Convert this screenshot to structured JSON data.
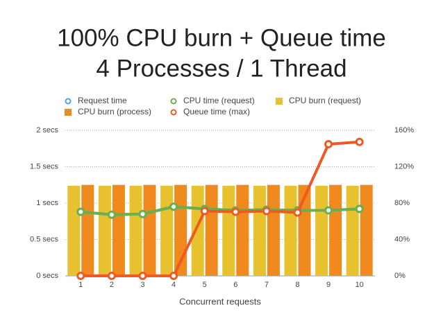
{
  "chart_data": {
    "type": "combo",
    "title": "100% CPU burn + Queue time",
    "subtitle": "4 Processes / 1 Thread",
    "xlabel": "Concurrent requests",
    "categories": [
      "1",
      "2",
      "3",
      "4",
      "5",
      "6",
      "7",
      "8",
      "9",
      "10"
    ],
    "ylim": [
      0,
      2
    ],
    "yticks": [
      {
        "value": 0,
        "label": "0 secs"
      },
      {
        "value": 0.5,
        "label": "0.5 secs"
      },
      {
        "value": 1,
        "label": "1 secs"
      },
      {
        "value": 1.5,
        "label": "1.5 secs"
      },
      {
        "value": 2,
        "label": "2 secs"
      }
    ],
    "y2lim": [
      0,
      160
    ],
    "y2ticks": [
      {
        "value": 0,
        "label": "0%"
      },
      {
        "value": 40,
        "label": "40%"
      },
      {
        "value": 80,
        "label": "80%"
      },
      {
        "value": 120,
        "label": "120%"
      },
      {
        "value": 160,
        "label": "160%"
      }
    ],
    "grid": true,
    "series": [
      {
        "name": "Request time",
        "type": "line",
        "color": "#4fa3e0",
        "values": [
          0.88,
          0.84,
          0.85,
          0.95,
          0.92,
          0.9,
          0.91,
          0.9,
          0.9,
          0.92
        ]
      },
      {
        "name": "CPU time (request)",
        "type": "line",
        "color": "#6ab04c",
        "values": [
          0.88,
          0.84,
          0.85,
          0.95,
          0.92,
          0.9,
          0.91,
          0.9,
          0.9,
          0.92
        ]
      },
      {
        "name": "CPU burn (request)",
        "type": "bar",
        "axis": "y2",
        "color": "#e8c22e",
        "values": [
          99,
          99,
          99,
          99,
          99,
          99,
          99,
          99,
          99,
          99
        ]
      },
      {
        "name": "CPU burn (process)",
        "type": "bar",
        "axis": "y2",
        "color": "#f08a1e",
        "values": [
          100,
          100,
          100,
          100,
          100,
          100,
          100,
          100,
          100,
          100
        ]
      },
      {
        "name": "Queue time (max)",
        "type": "line",
        "color": "#ef5a22",
        "values": [
          0,
          0,
          0,
          0,
          0.89,
          0.88,
          0.89,
          0.87,
          1.81,
          1.84
        ]
      }
    ]
  }
}
